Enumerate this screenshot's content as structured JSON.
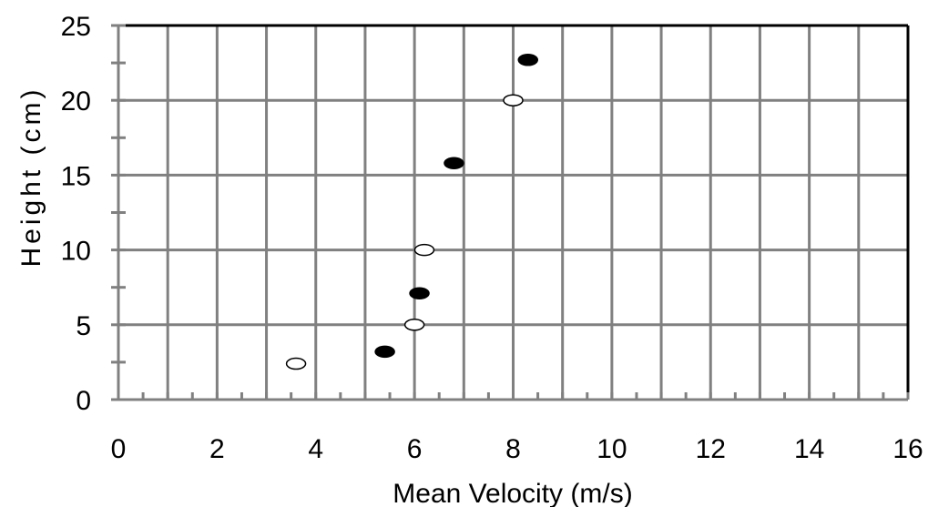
{
  "chart_data": {
    "type": "scatter",
    "title": "",
    "xlabel": "Mean Velocity (m/s)",
    "ylabel": "Height (cm)",
    "xlim": [
      0,
      16
    ],
    "ylim": [
      0,
      25
    ],
    "xticks": [
      "0",
      "2",
      "4",
      "6",
      "8",
      "10",
      "12",
      "14",
      "16"
    ],
    "yticks": [
      "0",
      "5",
      "10",
      "15",
      "20",
      "25"
    ],
    "grid": true,
    "grid_color": "#808080",
    "legend": "none",
    "series": [
      {
        "marker": "filled-ellipse",
        "color": "#000000",
        "points": [
          {
            "x": 5.4,
            "y": 3.2
          },
          {
            "x": 6.1,
            "y": 7.1
          },
          {
            "x": 6.8,
            "y": 15.8
          },
          {
            "x": 8.3,
            "y": 22.7
          }
        ]
      },
      {
        "marker": "open-ellipse",
        "color": "#000000",
        "points": [
          {
            "x": 3.6,
            "y": 2.4
          },
          {
            "x": 6.0,
            "y": 5.0
          },
          {
            "x": 6.2,
            "y": 10.0
          },
          {
            "x": 8.0,
            "y": 20.0
          }
        ]
      }
    ]
  }
}
